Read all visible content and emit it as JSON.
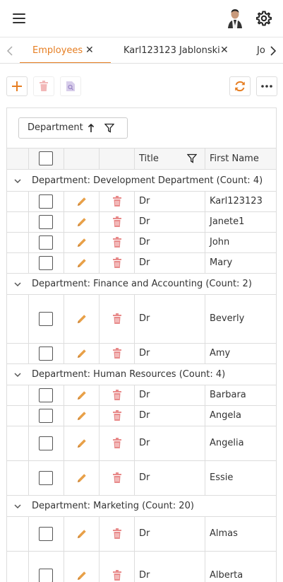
{
  "tabs": [
    {
      "label": "Employees",
      "active": true
    },
    {
      "label": "Karl123123 Jablonski",
      "active": false
    },
    {
      "label": "Jo",
      "active": false
    }
  ],
  "tab_close_glyph": "✕",
  "grid": {
    "group_chip": {
      "label": "Department"
    },
    "columns": {
      "title": "Title",
      "first_name": "First Name"
    },
    "groups": [
      {
        "label": "Department: Development Department (Count: 4)",
        "rows": [
          {
            "title": "Dr",
            "first_name": "Karl123123",
            "height": 29
          },
          {
            "title": "Dr",
            "first_name": "Janete1",
            "height": 29
          },
          {
            "title": "Dr",
            "first_name": "John",
            "height": 29
          },
          {
            "title": "Dr",
            "first_name": "Mary",
            "height": 29
          }
        ]
      },
      {
        "label": "Department: Finance and Accounting (Count: 2)",
        "rows": [
          {
            "title": "Dr",
            "first_name": "Beverly",
            "height": 69
          },
          {
            "title": "Dr",
            "first_name": "Amy",
            "height": 29
          }
        ]
      },
      {
        "label": "Department: Human Resources (Count: 4)",
        "rows": [
          {
            "title": "Dr",
            "first_name": "Barbara",
            "height": 29
          },
          {
            "title": "Dr",
            "first_name": "Angela",
            "height": 29
          },
          {
            "title": "Dr",
            "first_name": "Angelia",
            "height": 49
          },
          {
            "title": "Dr",
            "first_name": "Essie",
            "height": 49
          }
        ]
      },
      {
        "label": "Department: Marketing (Count: 20)",
        "rows": [
          {
            "title": "Dr",
            "first_name": "Almas",
            "height": 49
          },
          {
            "title": "Dr",
            "first_name": "Alberta",
            "height": 69
          }
        ]
      }
    ]
  },
  "colors": {
    "accent": "#e67e22",
    "edit": "#e8a048",
    "delete": "#e88a8a",
    "disabled": "#f2b8b8",
    "search_disabled": "#b9a8d8"
  }
}
